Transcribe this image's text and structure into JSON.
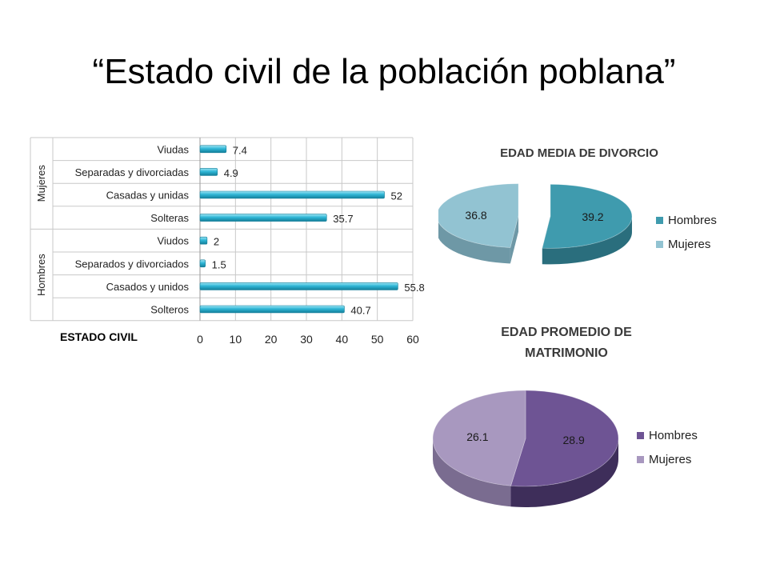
{
  "title": "“Estado civil de la población poblana”",
  "colors": {
    "bar_fill": "#2FB6D6",
    "bar_dark": "#1A8AA6",
    "pie1_hombres": "#3F9BAE",
    "pie1_mujeres": "#92C3D2",
    "pie2_hombres": "#6E5494",
    "pie2_mujeres": "#A898BF"
  },
  "chart_data": [
    {
      "type": "bar",
      "orientation": "horizontal",
      "xlabel": "ESTADO CIVIL",
      "xlim": [
        0,
        60
      ],
      "ticks": [
        "0",
        "10",
        "20",
        "30",
        "40",
        "50",
        "60"
      ],
      "groups": [
        {
          "name": "Mujeres",
          "categories": [
            "Viudas",
            "Separadas y divorciadas",
            "Casadas y unidas",
            "Solteras"
          ],
          "values": [
            7.4,
            4.9,
            52,
            35.7
          ],
          "labels": [
            "7.4",
            "4.9",
            "52",
            "35.7"
          ]
        },
        {
          "name": "Hombres",
          "categories": [
            "Viudos",
            "Separados y divorciados",
            "Casados y unidos",
            "Solteros"
          ],
          "values": [
            2,
            1.5,
            55.8,
            40.7
          ],
          "labels": [
            "2",
            "1.5",
            "55.8",
            "40.7"
          ]
        }
      ],
      "grid": true
    },
    {
      "type": "pie",
      "title": "EDAD MEDIA DE DIVORCIO",
      "categories": [
        "Hombres",
        "Mujeres"
      ],
      "values": [
        39.2,
        36.8
      ],
      "labels": [
        "39.2",
        "36.8"
      ],
      "exploded": true,
      "legend": "right"
    },
    {
      "type": "pie",
      "title_lines": [
        "EDAD PROMEDIO DE",
        "MATRIMONIO"
      ],
      "categories": [
        "Hombres",
        "Mujeres"
      ],
      "values": [
        28.9,
        26.1
      ],
      "labels": [
        "28.9",
        "26.1"
      ],
      "exploded": false,
      "legend": "right"
    }
  ]
}
